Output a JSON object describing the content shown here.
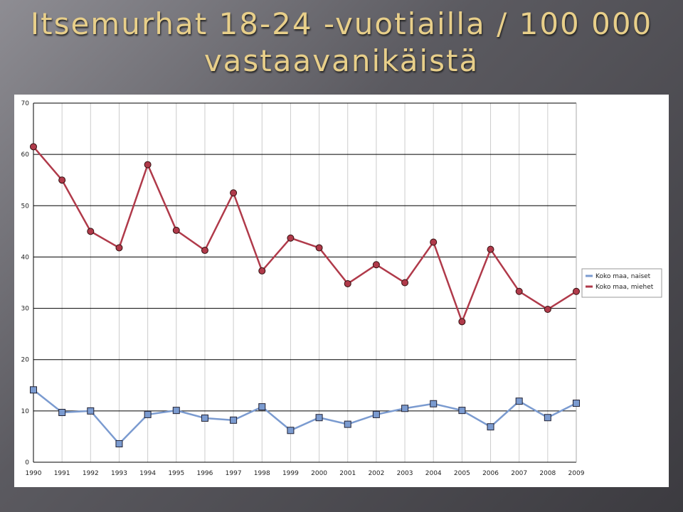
{
  "chart_data": {
    "type": "line",
    "title": "Itsemurhat 18-24 -vuotiailla / 100 000 vastaavanikäistä",
    "categories": [
      "1990",
      "1991",
      "1992",
      "1993",
      "1994",
      "1995",
      "1996",
      "1997",
      "1998",
      "1999",
      "2000",
      "2001",
      "2002",
      "2003",
      "2004",
      "2005",
      "2006",
      "2007",
      "2008",
      "2009"
    ],
    "series": [
      {
        "name": "Koko maa, naiset",
        "color": "#7b9bd0",
        "marker": "square",
        "values": [
          14.1,
          9.7,
          10.0,
          3.6,
          9.3,
          10.1,
          8.6,
          8.2,
          10.8,
          6.2,
          8.7,
          7.4,
          9.3,
          10.5,
          11.4,
          10.1,
          6.9,
          11.9,
          8.7,
          11.5
        ]
      },
      {
        "name": "Koko maa, miehet",
        "color": "#b03a4a",
        "marker": "circle",
        "values": [
          61.5,
          55,
          45,
          41.8,
          58,
          45.2,
          41.3,
          52.5,
          37.3,
          43.7,
          41.8,
          34.8,
          38.5,
          35,
          42.9,
          27.4,
          41.5,
          33.3,
          29.8,
          33.3
        ]
      }
    ],
    "ylim": [
      0,
      70
    ],
    "yticks": [
      0,
      10,
      20,
      30,
      40,
      50,
      60,
      70
    ],
    "grid": true,
    "legend": "right"
  }
}
